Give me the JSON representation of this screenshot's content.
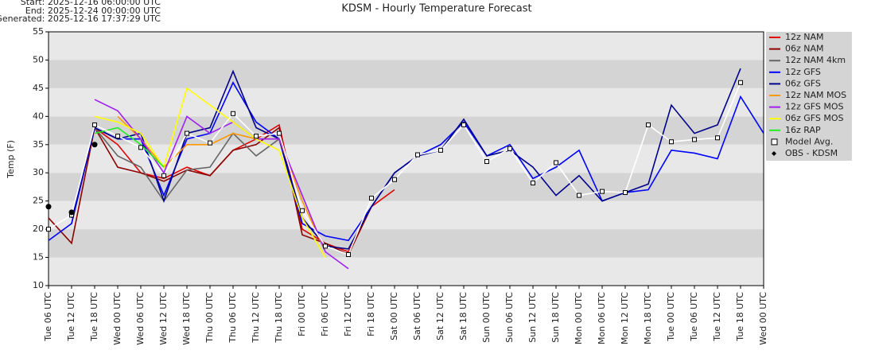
{
  "chart_data": {
    "type": "line",
    "title": "KDSM - Hourly Temperature Forecast",
    "header": [
      "Start: 2025-12-16 06:00:00 UTC",
      "End: 2025-12-24 00:00:00 UTC",
      "Generated: 2025-12-16 17:37:29 UTC"
    ],
    "y_label": "Temp (F)",
    "ylim": [
      10,
      55
    ],
    "yticks": [
      10,
      15,
      20,
      25,
      30,
      35,
      40,
      45,
      50,
      55
    ],
    "grid": true,
    "legend": "right",
    "categories": [
      "Tue 06 UTC",
      "Tue 12 UTC",
      "Tue 18 UTC",
      "Wed 00 UTC",
      "Wed 06 UTC",
      "Wed 12 UTC",
      "Wed 18 UTC",
      "Thu 00 UTC",
      "Thu 06 UTC",
      "Thu 12 UTC",
      "Thu 18 UTC",
      "Fri 00 UTC",
      "Fri 06 UTC",
      "Fri 12 UTC",
      "Fri 18 UTC",
      "Sat 00 UTC",
      "Sat 06 UTC",
      "Sat 12 UTC",
      "Sat 18 UTC",
      "Sun 00 UTC",
      "Sun 06 UTC",
      "Sun 12 UTC",
      "Sun 18 UTC",
      "Mon 00 UTC",
      "Mon 06 UTC",
      "Mon 12 UTC",
      "Mon 18 UTC",
      "Tue 00 UTC",
      "Tue 06 UTC",
      "Tue 12 UTC",
      "Tue 18 UTC",
      "Wed 00 UTC"
    ],
    "series": [
      {
        "name": "12z NAM",
        "color": "#e00000",
        "values": [
          null,
          21,
          38,
          35,
          30,
          29,
          31,
          29.5,
          34,
          36,
          38.5,
          20,
          17.5,
          16,
          24,
          27,
          null,
          null,
          null,
          null,
          null,
          null,
          null,
          null,
          null,
          null,
          null,
          null,
          null,
          null,
          null,
          null
        ]
      },
      {
        "name": "06z NAM",
        "color": "#8b0000",
        "values": [
          22,
          17.5,
          38,
          31,
          30,
          28.5,
          30.5,
          29.5,
          34,
          35,
          38,
          19,
          17.5,
          15.5,
          24,
          null,
          null,
          null,
          null,
          null,
          null,
          null,
          null,
          null,
          null,
          null,
          null,
          null,
          null,
          null,
          null,
          null
        ]
      },
      {
        "name": "12z NAM 4km",
        "color": "#666666",
        "values": [
          null,
          null,
          38,
          33,
          31,
          25,
          30.5,
          31,
          37,
          33,
          36,
          21,
          null,
          null,
          null,
          null,
          null,
          null,
          null,
          null,
          null,
          null,
          null,
          null,
          null,
          null,
          null,
          null,
          null,
          null,
          null,
          null
        ]
      },
      {
        "name": "12z GFS",
        "color": "#0000ff",
        "values": [
          18,
          21,
          38,
          36,
          36,
          26,
          36,
          37,
          46,
          39,
          36,
          21,
          18.8,
          18,
          24,
          30,
          33,
          35,
          39,
          33,
          35,
          29,
          31,
          34,
          25,
          26.5,
          27,
          34,
          33.5,
          32.5,
          43.5,
          37
        ]
      },
      {
        "name": "06z GFS",
        "color": "#00008b",
        "values": [
          null,
          22,
          38,
          36,
          37,
          25,
          37,
          38,
          48,
          38,
          36,
          22,
          17,
          16.5,
          24,
          30,
          33,
          34,
          39.5,
          33,
          34,
          31,
          26,
          29.5,
          25,
          26.5,
          28,
          42,
          37,
          38.5,
          48.5,
          null
        ]
      },
      {
        "name": "12z NAM MOS",
        "color": "#ff9900",
        "values": [
          null,
          null,
          null,
          40,
          36,
          31,
          35,
          35,
          37,
          36,
          36,
          25,
          16,
          null,
          null,
          null,
          null,
          null,
          null,
          null,
          null,
          null,
          null,
          null,
          null,
          null,
          null,
          null,
          null,
          null,
          null,
          null
        ]
      },
      {
        "name": "12z GFS MOS",
        "color": "#a020f0",
        "values": [
          null,
          null,
          43,
          41,
          36,
          30,
          40,
          37,
          39,
          36,
          36,
          26,
          16,
          13,
          null,
          null,
          null,
          null,
          null,
          null,
          null,
          null,
          null,
          null,
          null,
          null,
          null,
          null,
          null,
          null,
          null,
          null
        ]
      },
      {
        "name": "06z GFS MOS",
        "color": "#ffff00",
        "values": [
          null,
          null,
          40,
          39,
          37,
          31,
          45,
          42,
          39,
          36,
          34,
          22,
          15,
          null,
          null,
          null,
          null,
          null,
          null,
          null,
          null,
          null,
          null,
          null,
          null,
          null,
          null,
          null,
          null,
          null,
          null,
          null
        ]
      },
      {
        "name": "16z RAP",
        "color": "#22ee22",
        "values": [
          null,
          null,
          37,
          38,
          35,
          31,
          null,
          null,
          null,
          null,
          null,
          null,
          null,
          null,
          null,
          null,
          null,
          null,
          null,
          null,
          null,
          null,
          null,
          null,
          null,
          null,
          null,
          null,
          null,
          null,
          null,
          null
        ]
      },
      {
        "name": "Model Avg.",
        "color": "#ffffff",
        "marker": "square",
        "values": [
          20,
          22.5,
          38.5,
          36.5,
          34.5,
          29.5,
          37,
          35.3,
          40.5,
          36.5,
          37,
          23.3,
          17,
          15.5,
          25.5,
          28.8,
          33.2,
          34,
          38.5,
          32,
          34.3,
          28.2,
          31.8,
          26,
          26.7,
          26.5,
          38.5,
          35.5,
          35.9,
          36.2,
          46,
          null
        ]
      },
      {
        "name": "OBS - KDSM",
        "color": "#000000",
        "marker": "dot",
        "values": [
          24,
          23,
          35,
          null,
          null,
          null,
          null,
          null,
          null,
          null,
          null,
          null,
          null,
          null,
          null,
          null,
          null,
          null,
          null,
          null,
          null,
          null,
          null,
          null,
          null,
          null,
          null,
          null,
          null,
          null,
          null,
          null
        ]
      }
    ]
  }
}
